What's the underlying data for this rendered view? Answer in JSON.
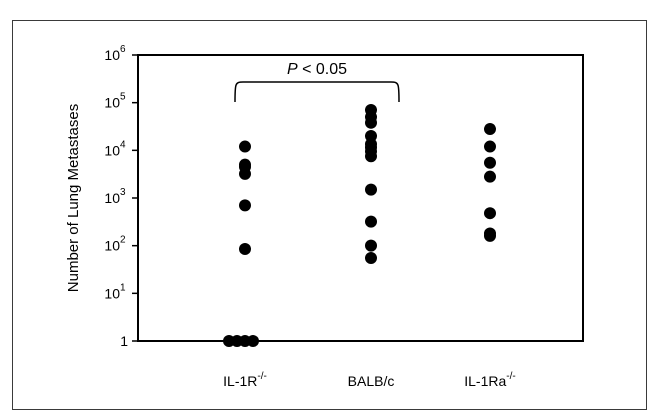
{
  "chart_data": {
    "type": "scatter",
    "ylabel": "Number of Lung Metastases",
    "yscale": "log",
    "ylim": [
      1,
      1000000
    ],
    "yticks": [
      {
        "value": 1,
        "base": "1",
        "exp": ""
      },
      {
        "value": 10,
        "base": "10",
        "exp": "1"
      },
      {
        "value": 100,
        "base": "10",
        "exp": "2"
      },
      {
        "value": 1000,
        "base": "10",
        "exp": "3"
      },
      {
        "value": 10000,
        "base": "10",
        "exp": "4"
      },
      {
        "value": 100000,
        "base": "10",
        "exp": "5"
      },
      {
        "value": 1000000,
        "base": "10",
        "exp": "6"
      }
    ],
    "categories": [
      {
        "base": "IL-1R",
        "sup": "-/-"
      },
      {
        "base": "BALB/c",
        "sup": ""
      },
      {
        "base": "IL-1Ra",
        "sup": "-/-"
      }
    ],
    "series": [
      {
        "values": [
          1,
          1,
          1,
          1,
          85,
          700,
          3200,
          4500,
          5000,
          12000
        ]
      },
      {
        "values": [
          55,
          100,
          320,
          1500,
          7500,
          9500,
          11500,
          13500,
          20000,
          38000,
          50000,
          70000
        ]
      },
      {
        "values": [
          160,
          180,
          480,
          2800,
          5500,
          12000,
          28000
        ]
      }
    ],
    "annotation": {
      "p_symbol": "P",
      "text": " < 0.05",
      "between": [
        0,
        1
      ]
    },
    "grid": false,
    "legend": "none",
    "marker_color": "#000000"
  }
}
